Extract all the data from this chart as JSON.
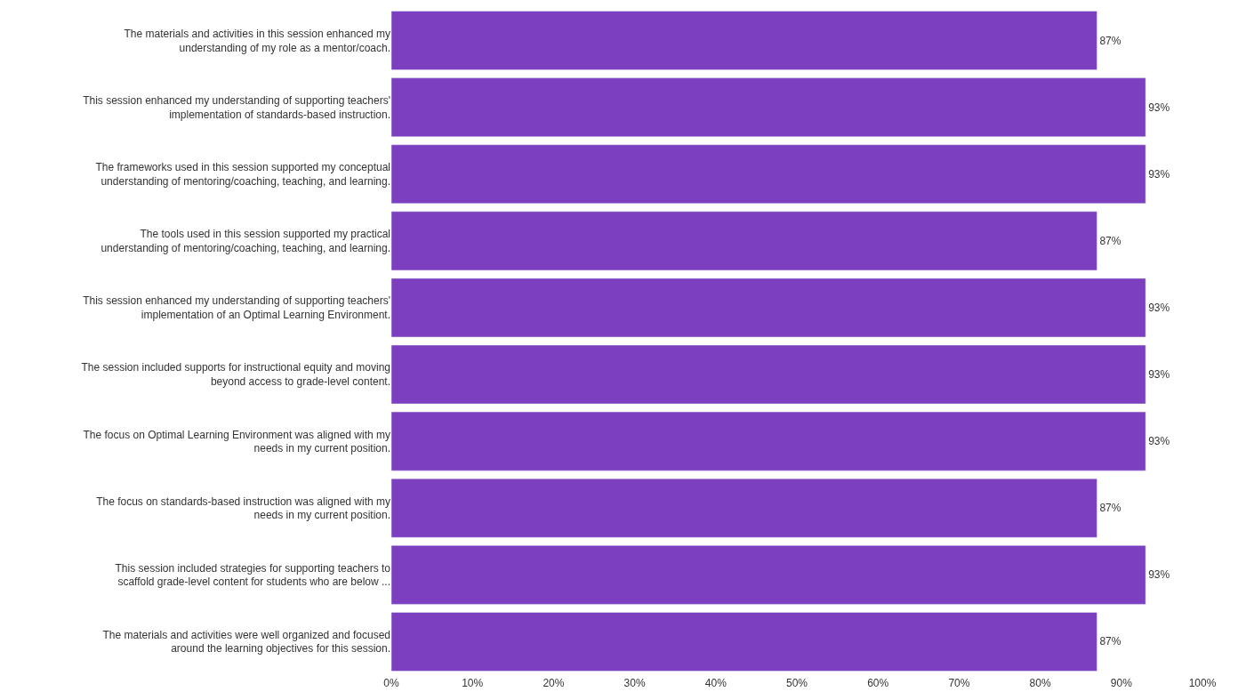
{
  "chart_data": {
    "type": "bar",
    "orientation": "horizontal",
    "categories": [
      "The materials and activities in this session enhanced my\nunderstanding of my role as a mentor/coach.",
      "This session enhanced my understanding of supporting teachers'\nimplementation of standards-based instruction.",
      "The frameworks used in this session supported my conceptual\nunderstanding of mentoring/coaching, teaching, and learning.",
      "The tools used in this session supported my practical\nunderstanding of mentoring/coaching, teaching, and learning.",
      "This session enhanced my understanding of supporting teachers'\nimplementation of an Optimal Learning Environment.",
      "The session included supports for instructional equity and moving\nbeyond access to grade-level content.",
      "The focus on Optimal Learning Environment was aligned with my\nneeds in my current position.",
      "The focus on standards-based instruction was aligned with my\nneeds in my current position.",
      "This session included strategies for supporting teachers to\nscaffold grade-level content for students who are below ...",
      "The materials and activities were well organized and focused\naround the learning objectives for this session."
    ],
    "values": [
      87,
      93,
      93,
      87,
      93,
      93,
      93,
      87,
      93,
      87
    ],
    "value_labels": [
      "87%",
      "93%",
      "93%",
      "87%",
      "93%",
      "93%",
      "93%",
      "87%",
      "93%",
      "87%"
    ],
    "color": "#7b3fbf",
    "xlim": [
      0,
      100
    ],
    "xticks": [
      {
        "value": 0,
        "label": "0%"
      },
      {
        "value": 10,
        "label": "10%"
      },
      {
        "value": 20,
        "label": "20%"
      },
      {
        "value": 30,
        "label": "30%"
      },
      {
        "value": 40,
        "label": "40%"
      },
      {
        "value": 50,
        "label": "50%"
      },
      {
        "value": 60,
        "label": "60%"
      },
      {
        "value": 70,
        "label": "70%"
      },
      {
        "value": 80,
        "label": "80%"
      },
      {
        "value": 90,
        "label": "90%"
      },
      {
        "value": 100,
        "label": "100%"
      }
    ],
    "legend": false
  }
}
